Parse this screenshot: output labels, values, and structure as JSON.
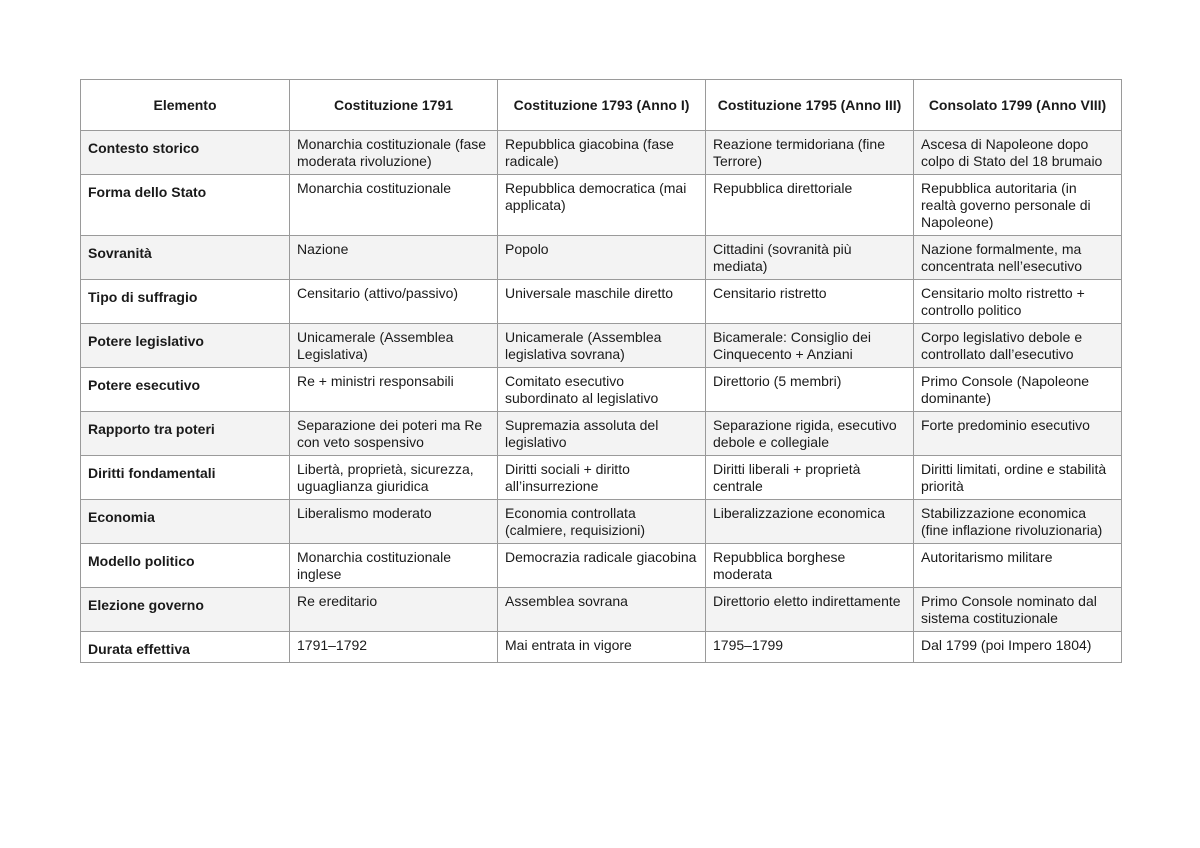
{
  "table": {
    "headers": [
      "Elemento",
      "Costituzione 1791",
      "Costituzione 1793 (Anno I)",
      "Costituzione 1795 (Anno III)",
      "Consolato 1799 (Anno VIII)"
    ],
    "rows": [
      [
        "Contesto storico",
        "Monarchia costituzionale (fase moderata rivoluzione)",
        "Repubblica giacobina (fase radicale)",
        "Reazione termidoriana (fine Terrore)",
        "Ascesa di Napoleone dopo colpo di Stato del 18 brumaio"
      ],
      [
        "Forma dello Stato",
        "Monarchia costituzionale",
        "Repubblica democratica (mai applicata)",
        "Repubblica direttoriale",
        "Repubblica autoritaria (in realtà governo personale di Napoleone)"
      ],
      [
        "Sovranità",
        "Nazione",
        "Popolo",
        "Cittadini (sovranità più mediata)",
        "Nazione formalmente, ma concentrata nell’esecutivo"
      ],
      [
        "Tipo di suffragio",
        "Censitario (attivo/passivo)",
        "Universale maschile diretto",
        "Censitario ristretto",
        "Censitario molto ristretto + controllo politico"
      ],
      [
        "Potere legislativo",
        "Unicamerale (Assemblea Legislativa)",
        "Unicamerale (Assemblea legislativa sovrana)",
        "Bicamerale: Consiglio dei Cinquecento + Anziani",
        "Corpo legislativo debole e controllato dall’esecutivo"
      ],
      [
        "Potere esecutivo",
        "Re + ministri responsabili",
        "Comitato esecutivo subordinato al legislativo",
        "Direttorio (5 membri)",
        "Primo Console (Napoleone dominante)"
      ],
      [
        "Rapporto tra poteri",
        "Separazione dei poteri ma Re con veto sospensivo",
        "Supremazia assoluta del legislativo",
        "Separazione rigida, esecutivo debole e collegiale",
        "Forte predominio esecutivo"
      ],
      [
        "Diritti fondamentali",
        "Libertà, proprietà, sicurezza, uguaglianza giuridica",
        "Diritti sociali + diritto all’insurrezione",
        "Diritti liberali + proprietà centrale",
        "Diritti limitati, ordine e stabilità priorità"
      ],
      [
        "Economia",
        "Liberalismo moderato",
        "Economia controllata (calmiere, requisizioni)",
        "Liberalizzazione economica",
        "Stabilizzazione economica (fine inflazione rivoluzionaria)"
      ],
      [
        "Modello politico",
        "Monarchia costituzionale inglese",
        "Democrazia radicale giacobina",
        "Repubblica borghese moderata",
        "Autoritarismo militare"
      ],
      [
        "Elezione governo",
        "Re ereditario",
        "Assemblea sovrana",
        "Direttorio eletto indirettamente",
        "Primo Console nominato dal sistema costituzionale"
      ],
      [
        "Durata effettiva",
        "1791–1792",
        "Mai entrata in vigore",
        "1795–1799",
        "Dal 1799 (poi Impero 1804)"
      ]
    ]
  }
}
